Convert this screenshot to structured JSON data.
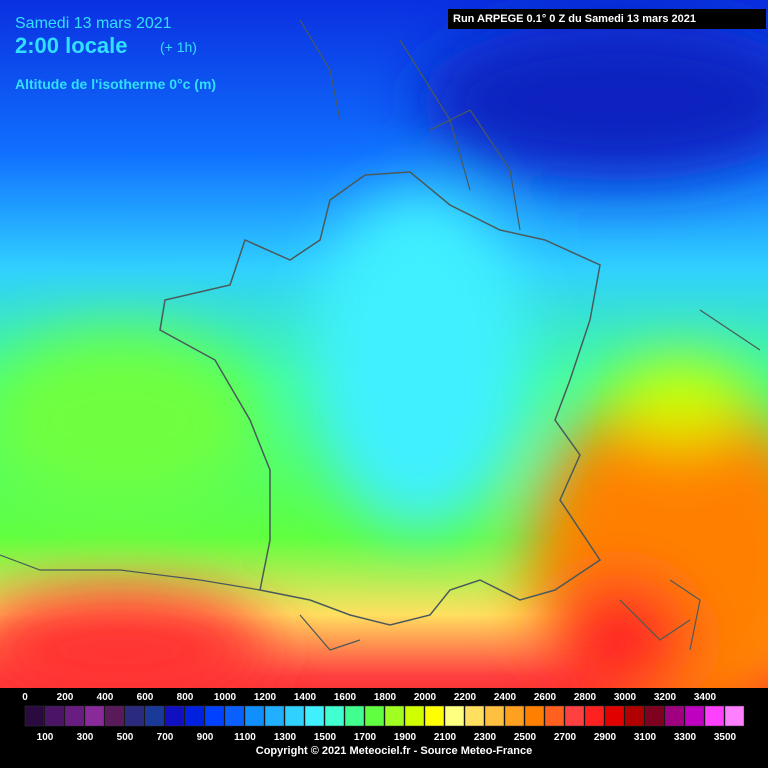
{
  "header": {
    "date": "Samedi 13 mars 2021",
    "time": "2:00 locale",
    "offset": "(+ 1h)",
    "field": "Altitude de l'isotherme 0°c (m)",
    "run": "Run ARPEGE 0.1° 0 Z du Samedi 13 mars 2021"
  },
  "legend": {
    "levels": [
      0,
      100,
      200,
      300,
      400,
      500,
      600,
      700,
      800,
      900,
      1000,
      1100,
      1200,
      1300,
      1400,
      1500,
      1600,
      1700,
      1800,
      1900,
      2000,
      2100,
      2200,
      2300,
      2400,
      2500,
      2600,
      2700,
      2800,
      2900,
      3000,
      3100,
      3200,
      3300,
      3400,
      3500
    ],
    "colors": [
      "#2b0b3f",
      "#4b1464",
      "#6a1d80",
      "#8a2a9a",
      "#5a1a5a",
      "#2a2a80",
      "#1a3a9a",
      "#1010c0",
      "#0020e0",
      "#0040ff",
      "#0a60ff",
      "#1090ff",
      "#20b0ff",
      "#30d0ff",
      "#40f0ff",
      "#40ffd0",
      "#40ff90",
      "#60ff40",
      "#a0ff20",
      "#d0ff00",
      "#ffff00",
      "#ffff80",
      "#ffe060",
      "#ffc040",
      "#ffa020",
      "#ff8000",
      "#ff6020",
      "#ff4040",
      "#ff2020",
      "#e00000",
      "#b00000",
      "#800020",
      "#a00080",
      "#c000c0",
      "#ff40ff",
      "#ff80ff"
    ]
  },
  "footer": {
    "copyright": "Copyright © 2021 Meteociel.fr - Source Meteo-France"
  }
}
